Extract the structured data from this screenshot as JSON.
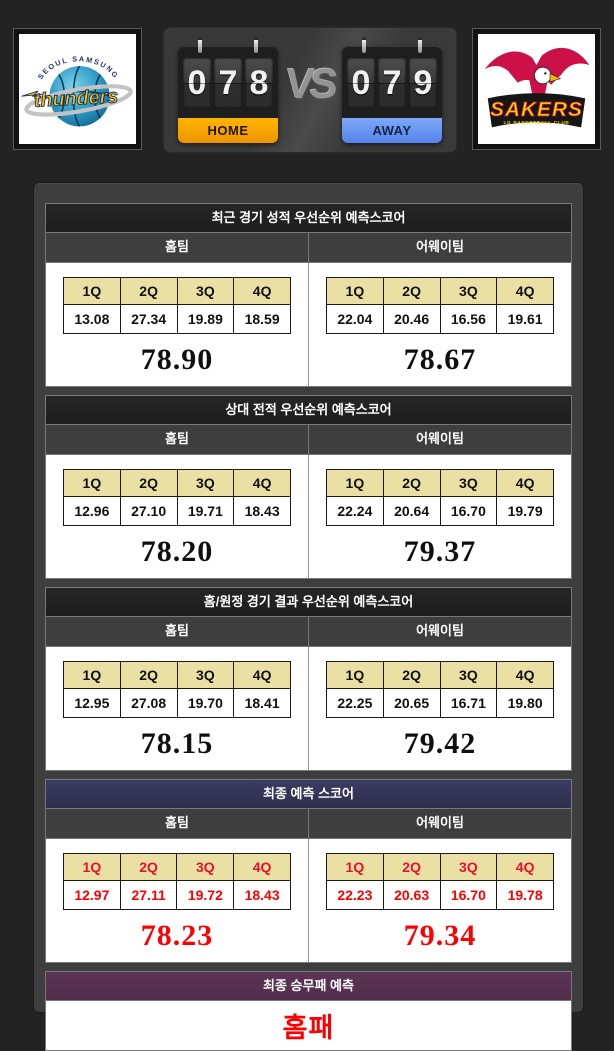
{
  "header": {
    "home_team": {
      "name": "thunders",
      "arc_text": "SEOUL SAMSUNG"
    },
    "away_team": {
      "name": "SAKERS",
      "sub_text": "LG BASKETBALL CLUB"
    },
    "scoreboard": {
      "home_score": "078",
      "away_score": "079",
      "vs_label": "VS",
      "home_label": "HOME",
      "away_label": "AWAY"
    }
  },
  "quarters": [
    "1Q",
    "2Q",
    "3Q",
    "4Q"
  ],
  "column_headers": {
    "home": "홈팀",
    "away": "어웨이팀"
  },
  "sections": [
    {
      "title": "최근 경기 성적 우선순위 예측스코어",
      "highlight": false,
      "home": {
        "values": [
          "13.08",
          "27.34",
          "19.89",
          "18.59"
        ],
        "total": "78.90"
      },
      "away": {
        "values": [
          "22.04",
          "20.46",
          "16.56",
          "19.61"
        ],
        "total": "78.67"
      }
    },
    {
      "title": "상대 전적 우선순위 예측스코어",
      "highlight": false,
      "home": {
        "values": [
          "12.96",
          "27.10",
          "19.71",
          "18.43"
        ],
        "total": "78.20"
      },
      "away": {
        "values": [
          "22.24",
          "20.64",
          "16.70",
          "19.79"
        ],
        "total": "79.37"
      }
    },
    {
      "title": "홈/원정 경기 결과 우선순위 예측스코어",
      "highlight": false,
      "home": {
        "values": [
          "12.95",
          "27.08",
          "19.70",
          "18.41"
        ],
        "total": "78.15"
      },
      "away": {
        "values": [
          "22.25",
          "20.65",
          "16.71",
          "19.80"
        ],
        "total": "79.42"
      }
    },
    {
      "title": "최종 예측 스코어",
      "highlight": true,
      "home": {
        "values": [
          "12.97",
          "27.11",
          "19.72",
          "18.43"
        ],
        "total": "78.23"
      },
      "away": {
        "values": [
          "22.23",
          "20.63",
          "16.70",
          "19.78"
        ],
        "total": "79.34"
      }
    }
  ],
  "final_prediction": {
    "title": "최종 승무패 예측",
    "result": "홈패"
  },
  "colors": {
    "page_bg": "#232323",
    "panel_bg": "#3e3e3e",
    "home_band": "#f9a400",
    "away_band": "#5f8df0",
    "quarter_header_bg": "#ebe0a3",
    "final_title_bg": "#333354",
    "outcome_title_bg": "#56304f",
    "highlight_red": "#ff0000"
  }
}
